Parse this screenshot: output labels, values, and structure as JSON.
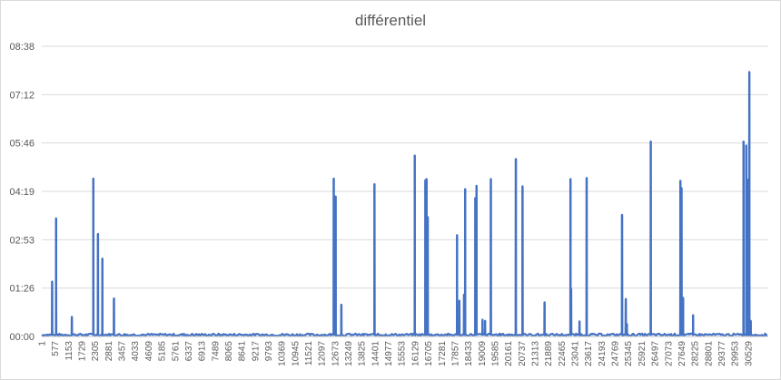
{
  "chart_data": {
    "type": "line",
    "title": "différentiel",
    "xlabel": "",
    "ylabel": "",
    "y_tick_labels": [
      "00:00",
      "01:26",
      "02:53",
      "04:19",
      "05:46",
      "07:12",
      "08:38"
    ],
    "ylim_seconds": [
      0,
      518
    ],
    "x_tick_labels": [
      "1",
      "577",
      "1153",
      "1729",
      "2305",
      "2881",
      "3457",
      "4033",
      "4609",
      "5185",
      "5761",
      "6337",
      "6913",
      "7489",
      "8065",
      "8641",
      "9217",
      "9793",
      "10369",
      "10945",
      "11521",
      "12097",
      "12673",
      "13249",
      "13825",
      "14401",
      "14977",
      "15553",
      "16129",
      "16705",
      "17281",
      "17857",
      "18433",
      "19009",
      "19585",
      "20161",
      "20737",
      "21313",
      "21889",
      "22465",
      "23041",
      "23617",
      "24193",
      "24769",
      "25345",
      "25921",
      "26497",
      "27073",
      "27649",
      "28225",
      "28801",
      "29377",
      "29953",
      "30529"
    ],
    "xlim": [
      1,
      31400
    ],
    "grid": true,
    "legend": "none",
    "series_color": "#4472c4",
    "baseline_seconds": 3,
    "spikes": [
      {
        "x": 450,
        "y": 98
      },
      {
        "x": 620,
        "y": 211
      },
      {
        "x": 1300,
        "y": 35
      },
      {
        "x": 2230,
        "y": 282
      },
      {
        "x": 2430,
        "y": 183
      },
      {
        "x": 2620,
        "y": 139
      },
      {
        "x": 3120,
        "y": 68
      },
      {
        "x": 12620,
        "y": 282
      },
      {
        "x": 12700,
        "y": 250
      },
      {
        "x": 12950,
        "y": 57
      },
      {
        "x": 14380,
        "y": 272
      },
      {
        "x": 16120,
        "y": 323
      },
      {
        "x": 16580,
        "y": 279
      },
      {
        "x": 16630,
        "y": 281
      },
      {
        "x": 16680,
        "y": 213
      },
      {
        "x": 17950,
        "y": 181
      },
      {
        "x": 18050,
        "y": 64
      },
      {
        "x": 18250,
        "y": 75
      },
      {
        "x": 18300,
        "y": 263
      },
      {
        "x": 18740,
        "y": 247
      },
      {
        "x": 18790,
        "y": 269
      },
      {
        "x": 19050,
        "y": 30
      },
      {
        "x": 19160,
        "y": 28
      },
      {
        "x": 19410,
        "y": 281
      },
      {
        "x": 20490,
        "y": 317
      },
      {
        "x": 20780,
        "y": 268
      },
      {
        "x": 21730,
        "y": 61
      },
      {
        "x": 22850,
        "y": 281
      },
      {
        "x": 22880,
        "y": 85
      },
      {
        "x": 23240,
        "y": 27
      },
      {
        "x": 23550,
        "y": 283
      },
      {
        "x": 25080,
        "y": 217
      },
      {
        "x": 25240,
        "y": 67
      },
      {
        "x": 25290,
        "y": 22
      },
      {
        "x": 26320,
        "y": 348
      },
      {
        "x": 27600,
        "y": 278
      },
      {
        "x": 27650,
        "y": 265
      },
      {
        "x": 27720,
        "y": 69
      },
      {
        "x": 28150,
        "y": 38
      },
      {
        "x": 30330,
        "y": 348
      },
      {
        "x": 30450,
        "y": 341
      },
      {
        "x": 30530,
        "y": 280
      },
      {
        "x": 30580,
        "y": 472
      },
      {
        "x": 30640,
        "y": 28
      }
    ]
  }
}
